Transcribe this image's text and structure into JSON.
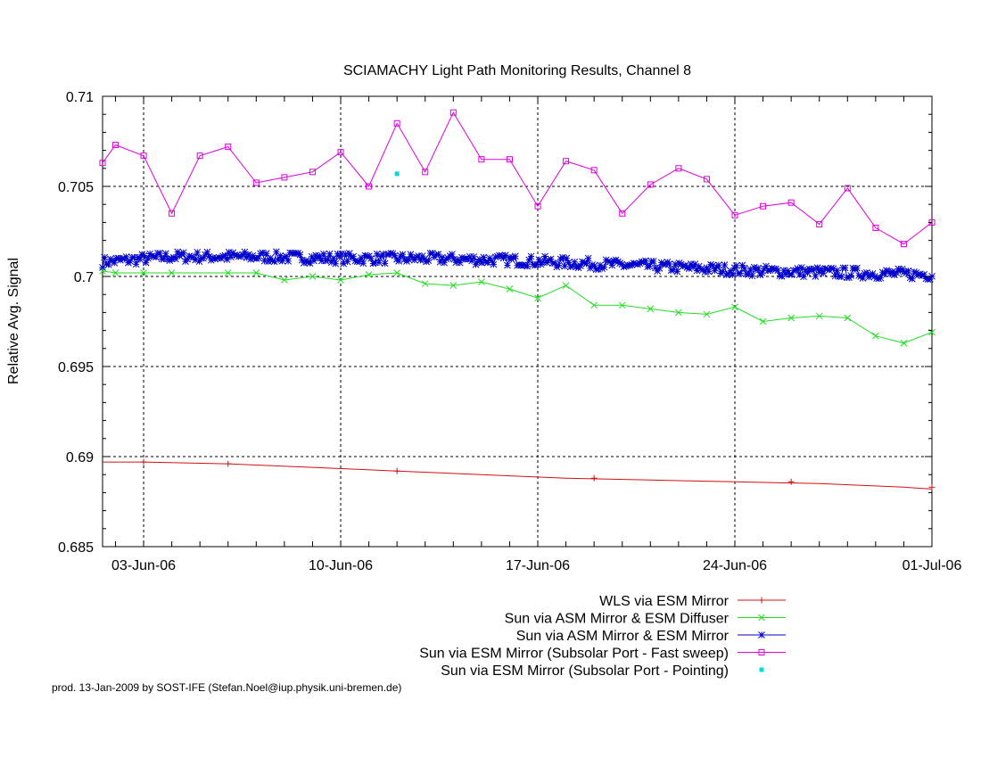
{
  "chart_data": {
    "type": "line",
    "title": "SCIAMACHY Light Path Monitoring Results, Channel 8",
    "xlabel": "",
    "ylabel": "Relative Avg. Signal",
    "x_range": [
      "2006-06-01T13:00",
      "2006-07-01T00:00"
    ],
    "ylim": [
      0.685,
      0.71
    ],
    "y_ticks": [
      0.685,
      0.69,
      0.695,
      0.7,
      0.705,
      0.71
    ],
    "y_tick_labels": [
      "0.685",
      "0.69",
      "0.695",
      "0.7",
      "0.705",
      "0.71"
    ],
    "x_ticks": [
      "2006-06-03",
      "2006-06-10",
      "2006-06-17",
      "2006-06-24",
      "2006-07-01"
    ],
    "x_tick_labels": [
      "03-Jun-06",
      "10-Jun-06",
      "17-Jun-06",
      "24-Jun-06",
      "01-Jul-06"
    ],
    "grid": true,
    "legend_position": "bottom-right, below plot",
    "series": [
      {
        "name": "WLS via ESM Mirror",
        "color": "#d01010",
        "marker": "plus",
        "x": [
          "2006-06-01T13:00",
          "2006-06-03T00:00",
          "2006-06-06T00:00",
          "2006-06-09T00:00",
          "2006-06-12T00:00",
          "2006-06-15T00:00",
          "2006-06-18T00:00",
          "2006-06-21T00:00",
          "2006-06-24T00:00",
          "2006-06-27T00:00",
          "2006-06-30T00:00",
          "2006-07-01T00:00"
        ],
        "y": [
          0.6897,
          0.6897,
          0.6896,
          0.6894,
          0.6892,
          0.689,
          0.6888,
          0.6887,
          0.6886,
          0.6885,
          0.6883,
          0.6882
        ],
        "marker_x": [
          "2006-06-03T00:00",
          "2006-06-06T00:00",
          "2006-06-12T00:00",
          "2006-06-19T00:00",
          "2006-06-26T00:00",
          "2006-07-01T00:00"
        ],
        "marker_y": [
          0.6897,
          0.6896,
          0.6892,
          0.6888,
          0.6886,
          0.6883
        ]
      },
      {
        "name": "Sun via ASM Mirror & ESM Diffuser",
        "color": "#22dd22",
        "marker": "cross",
        "x": [
          "2006-06-01T13:00",
          "2006-06-02T00:00",
          "2006-06-03T00:00",
          "2006-06-04T00:00",
          "2006-06-06T00:00",
          "2006-06-07T00:00",
          "2006-06-08T00:00",
          "2006-06-09T00:00",
          "2006-06-10T00:00",
          "2006-06-11T00:00",
          "2006-06-12T00:00",
          "2006-06-13T00:00",
          "2006-06-14T00:00",
          "2006-06-15T00:00",
          "2006-06-16T00:00",
          "2006-06-17T00:00",
          "2006-06-18T00:00",
          "2006-06-19T00:00",
          "2006-06-20T00:00",
          "2006-06-21T00:00",
          "2006-06-22T00:00",
          "2006-06-23T00:00",
          "2006-06-24T00:00",
          "2006-06-25T00:00",
          "2006-06-26T00:00",
          "2006-06-27T00:00",
          "2006-06-28T00:00",
          "2006-06-29T00:00",
          "2006-06-30T00:00",
          "2006-07-01T00:00"
        ],
        "y": [
          0.7003,
          0.7002,
          0.7002,
          0.7002,
          0.7002,
          0.7002,
          0.6998,
          0.7,
          0.6998,
          0.7001,
          0.7002,
          0.6996,
          0.6995,
          0.6997,
          0.6993,
          0.6988,
          0.6995,
          0.6984,
          0.6984,
          0.6982,
          0.698,
          0.6979,
          0.6983,
          0.6975,
          0.6977,
          0.6978,
          0.6977,
          0.6967,
          0.6963,
          0.6969
        ]
      },
      {
        "name": "Sun via ASM Mirror & ESM Mirror",
        "color": "#0000cc",
        "marker": "star",
        "x": [
          "2006-06-01T13:00",
          "2006-06-04T00:00",
          "2006-06-07T00:00",
          "2006-06-10T00:00",
          "2006-06-13T00:00",
          "2006-06-16T00:00",
          "2006-06-19T00:00",
          "2006-06-22T00:00",
          "2006-06-25T00:00",
          "2006-06-28T00:00",
          "2006-07-01T00:00"
        ],
        "y": [
          0.7008,
          0.7011,
          0.7011,
          0.701,
          0.701,
          0.7009,
          0.7007,
          0.7005,
          0.7003,
          0.7002,
          0.7001
        ]
      },
      {
        "name": "Sun via ESM Mirror (Subsolar Port - Fast sweep)",
        "color": "#dd00dd",
        "marker": "square",
        "x": [
          "2006-06-01T13:00",
          "2006-06-02T00:00",
          "2006-06-03T00:00",
          "2006-06-04T00:00",
          "2006-06-05T00:00",
          "2006-06-06T00:00",
          "2006-06-07T00:00",
          "2006-06-08T00:00",
          "2006-06-09T00:00",
          "2006-06-10T00:00",
          "2006-06-11T00:00",
          "2006-06-12T00:00",
          "2006-06-13T00:00",
          "2006-06-14T00:00",
          "2006-06-15T00:00",
          "2006-06-16T00:00",
          "2006-06-17T00:00",
          "2006-06-18T00:00",
          "2006-06-19T00:00",
          "2006-06-20T00:00",
          "2006-06-21T00:00",
          "2006-06-22T00:00",
          "2006-06-23T00:00",
          "2006-06-24T00:00",
          "2006-06-25T00:00",
          "2006-06-26T00:00",
          "2006-06-27T00:00",
          "2006-06-28T00:00",
          "2006-06-29T00:00",
          "2006-06-30T00:00",
          "2006-07-01T00:00"
        ],
        "y": [
          0.7063,
          0.7073,
          0.7067,
          0.7035,
          0.7067,
          0.7072,
          0.7052,
          0.7055,
          0.7058,
          0.7069,
          0.705,
          0.7085,
          0.7058,
          0.7091,
          0.7065,
          0.7065,
          0.7039,
          0.7064,
          0.7059,
          0.7035,
          0.7051,
          0.706,
          0.7054,
          0.7034,
          0.7039,
          0.7041,
          0.7029,
          0.7049,
          0.7027,
          0.7018,
          0.703
        ]
      },
      {
        "name": "Sun via ESM Mirror (Subsolar Port - Pointing)",
        "color": "#00dddd",
        "marker": "dot",
        "x": [
          "2006-06-12T00:00"
        ],
        "y": [
          0.7057
        ]
      }
    ]
  },
  "footer_text": "prod. 13-Jan-2009 by SOST-IFE (Stefan.Noel@iup.physik.uni-bremen.de)"
}
